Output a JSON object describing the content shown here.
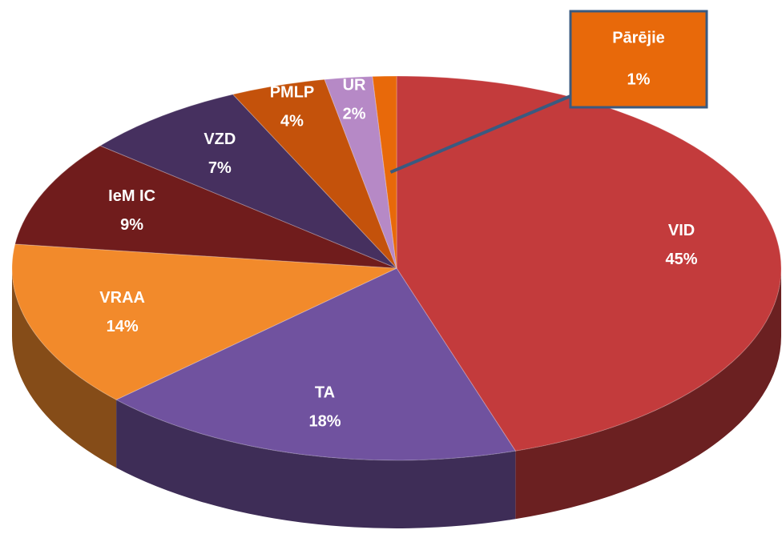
{
  "chart_data": {
    "type": "pie",
    "categories": [
      "VID",
      "TA",
      "VRAA",
      "IeM IC",
      "VZD",
      "PMLP",
      "UR",
      "Pārējie"
    ],
    "values": [
      45,
      18,
      14,
      9,
      7,
      4,
      2,
      1
    ],
    "value_labels": [
      "45%",
      "18%",
      "14%",
      "9%",
      "7%",
      "4%",
      "2%",
      "1%"
    ],
    "colors": [
      "#c33b3c",
      "#70529f",
      "#f28a2b",
      "#701c1c",
      "#46305f",
      "#c4520b",
      "#b689c6",
      "#e8690a"
    ]
  }
}
